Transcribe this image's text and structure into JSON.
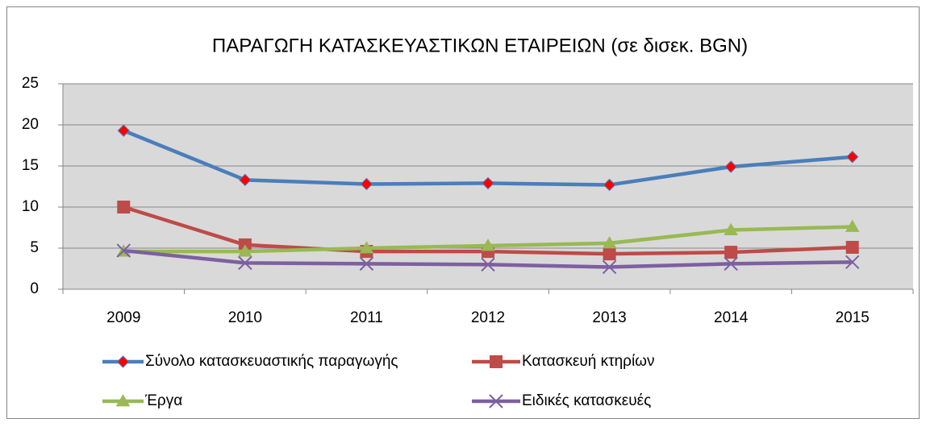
{
  "chart_data": {
    "type": "line",
    "title": "ΠΑΡΑΓΩΓΗ ΚΑΤΑΣΚΕΥΑΣΤΙΚΩΝ ΕΤΑΙΡΕΙΩΝ (σε δισεκ. BGN)",
    "categories": [
      "2009",
      "2010",
      "2011",
      "2012",
      "2013",
      "2014",
      "2015"
    ],
    "series": [
      {
        "name": "Σύνολο κατασκευαστικής παραγωγής",
        "color": "#4a7ebb",
        "marker": "diamond",
        "marker_color": "#ff0000",
        "values": [
          19.3,
          13.3,
          12.8,
          12.9,
          12.7,
          14.9,
          16.1
        ]
      },
      {
        "name": "Κατασκευή κτηρίων",
        "color": "#be4b48",
        "marker": "square",
        "marker_color": "#be4b48",
        "values": [
          10.0,
          5.4,
          4.6,
          4.6,
          4.3,
          4.5,
          5.1
        ]
      },
      {
        "name": "Έργα",
        "color": "#98b954",
        "marker": "triangle",
        "marker_color": "#98b954",
        "values": [
          4.6,
          4.6,
          5.0,
          5.3,
          5.6,
          7.2,
          7.6
        ]
      },
      {
        "name": "Ειδικές κατασκευές",
        "color": "#7d60a0",
        "marker": "x",
        "marker_color": "#7d60a0",
        "values": [
          4.7,
          3.2,
          3.1,
          3.0,
          2.7,
          3.1,
          3.3
        ]
      }
    ],
    "ylim": [
      0,
      25
    ],
    "yticks": [
      0,
      5,
      10,
      15,
      20,
      25
    ],
    "grid": true,
    "legend": "bottom"
  }
}
